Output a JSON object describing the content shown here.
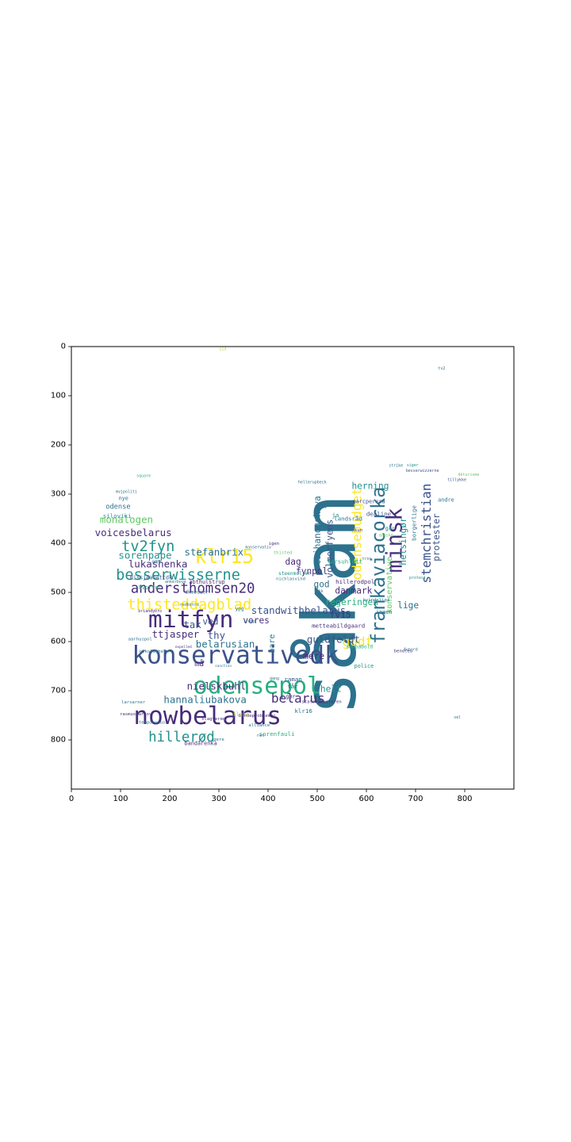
{
  "chart_data": {
    "type": "wordcloud",
    "title": "",
    "xlabel": "",
    "ylabel": "",
    "xlim": [
      0,
      900
    ],
    "ylim": [
      900,
      0
    ],
    "x_ticks": [
      0,
      100,
      200,
      300,
      400,
      500,
      600,
      700,
      800
    ],
    "y_ticks": [
      0,
      100,
      200,
      300,
      400,
      500,
      600,
      700,
      800
    ],
    "grid": false,
    "colormap": "viridis",
    "colors": [
      "#440154",
      "#472d7b",
      "#3b528b",
      "#2c728e",
      "#21918c",
      "#28ae80",
      "#5ec962",
      "#addc30",
      "#fde725"
    ],
    "words": [
      {
        "text": "såkan",
        "x": 525,
        "y": 525,
        "size": 150,
        "rot": -90,
        "c": 3
      },
      {
        "text": "konservativedk",
        "x": 334,
        "y": 628,
        "size": 50,
        "rot": 0,
        "c": 2
      },
      {
        "text": "nowbelarus",
        "x": 277,
        "y": 752,
        "size": 50,
        "rot": 0,
        "c": 1
      },
      {
        "text": "odensepol",
        "x": 378,
        "y": 690,
        "size": 48,
        "rot": 0,
        "c": 5
      },
      {
        "text": "mitfyn",
        "x": 243,
        "y": 556,
        "size": 48,
        "rot": 0,
        "c": 1
      },
      {
        "text": "minsk",
        "x": 658,
        "y": 394,
        "size": 44,
        "rot": -90,
        "c": 1
      },
      {
        "text": "frankaviacorka",
        "x": 624,
        "y": 445,
        "size": 38,
        "rot": -90,
        "c": 3
      },
      {
        "text": "klr15",
        "x": 311,
        "y": 427,
        "size": 40,
        "rot": 0,
        "c": 8
      },
      {
        "text": "besserwisserne",
        "x": 217,
        "y": 465,
        "size": 30,
        "rot": 0,
        "c": 4
      },
      {
        "text": "thisteddagblad",
        "x": 240,
        "y": 526,
        "size": 30,
        "rot": 0,
        "c": 8
      },
      {
        "text": "andersthomsen20",
        "x": 247,
        "y": 493,
        "size": 28,
        "rot": 0,
        "c": 1
      },
      {
        "text": "tv2fyn",
        "x": 156,
        "y": 407,
        "size": 30,
        "rot": 0,
        "c": 4
      },
      {
        "text": "hillerød",
        "x": 224,
        "y": 795,
        "size": 28,
        "rot": 0,
        "c": 4
      },
      {
        "text": "belarus",
        "x": 461,
        "y": 715,
        "size": 26,
        "rot": 0,
        "c": 1
      },
      {
        "text": "odensebudget",
        "x": 581,
        "y": 381,
        "size": 26,
        "rot": -90,
        "c": 8
      },
      {
        "text": "godt",
        "x": 582,
        "y": 600,
        "size": 26,
        "rot": 0,
        "c": 8
      },
      {
        "text": "stemchristian",
        "x": 722,
        "y": 380,
        "size": 26,
        "rot": -90,
        "c": 2
      },
      {
        "text": "lukashenka",
        "x": 176,
        "y": 442,
        "size": 20,
        "rot": 0,
        "c": 1
      },
      {
        "text": "stefanbrix",
        "x": 290,
        "y": 418,
        "size": 20,
        "rot": 0,
        "c": 3
      },
      {
        "text": "monalogen",
        "x": 112,
        "y": 352,
        "size": 20,
        "rot": 0,
        "c": 6
      },
      {
        "text": "sorenpape",
        "x": 150,
        "y": 424,
        "size": 20,
        "rot": 0,
        "c": 4
      },
      {
        "text": "voicesbelarus",
        "x": 126,
        "y": 378,
        "size": 20,
        "rot": 0,
        "c": 1
      },
      {
        "text": "hannaliubakova",
        "x": 272,
        "y": 718,
        "size": 20,
        "rot": 0,
        "c": 3
      },
      {
        "text": "nielskbuhl",
        "x": 295,
        "y": 690,
        "size": 20,
        "rot": 0,
        "c": 1
      },
      {
        "text": "standwithbelarus",
        "x": 462,
        "y": 536,
        "size": 20,
        "rot": 0,
        "c": 2
      },
      {
        "text": "guldfeldt",
        "x": 533,
        "y": 595,
        "size": 20,
        "rot": 0,
        "c": 2
      },
      {
        "text": "belarusian",
        "x": 313,
        "y": 605,
        "size": 20,
        "rot": 0,
        "c": 3
      },
      {
        "text": "ttjasper",
        "x": 212,
        "y": 585,
        "size": 20,
        "rot": 0,
        "c": 1
      },
      {
        "text": "tsihanouskaya",
        "x": 501,
        "y": 374,
        "size": 18,
        "rot": -90,
        "c": 3
      },
      {
        "text": "volmerfyens",
        "x": 526,
        "y": 411,
        "size": 18,
        "rot": -90,
        "c": 2
      },
      {
        "text": "fynpol",
        "x": 489,
        "y": 457,
        "size": 18,
        "rot": 0,
        "c": 1
      },
      {
        "text": "danmark",
        "x": 574,
        "y": 497,
        "size": 18,
        "rot": 0,
        "c": 1
      },
      {
        "text": "regeringen",
        "x": 570,
        "y": 520,
        "size": 18,
        "rot": 0,
        "c": 5
      },
      {
        "text": "herning",
        "x": 608,
        "y": 284,
        "size": 18,
        "rot": 0,
        "c": 4
      },
      {
        "text": "helsingør",
        "x": 675,
        "y": 396,
        "size": 18,
        "rot": -90,
        "c": 4
      },
      {
        "text": "konservative",
        "x": 648,
        "y": 485,
        "size": 16,
        "rot": -90,
        "c": 6
      },
      {
        "text": "protester",
        "x": 743,
        "y": 388,
        "size": 18,
        "rot": -90,
        "c": 2
      },
      {
        "text": "lige",
        "x": 685,
        "y": 527,
        "size": 18,
        "rot": 0,
        "c": 3
      },
      {
        "text": "tak",
        "x": 246,
        "y": 565,
        "size": 20,
        "rot": 0,
        "c": 2
      },
      {
        "text": "thy",
        "x": 295,
        "y": 587,
        "size": 20,
        "rot": 0,
        "c": 2
      },
      {
        "text": "vores",
        "x": 376,
        "y": 557,
        "size": 18,
        "rot": 0,
        "c": 1
      },
      {
        "text": "ved",
        "x": 283,
        "y": 560,
        "size": 18,
        "rot": 0,
        "c": 2
      },
      {
        "text": "god",
        "x": 509,
        "y": 484,
        "size": 18,
        "rot": 0,
        "c": 3
      },
      {
        "text": "fv15",
        "x": 547,
        "y": 546,
        "size": 18,
        "rot": 0,
        "c": 1
      },
      {
        "text": "mere",
        "x": 493,
        "y": 630,
        "size": 18,
        "rot": 0,
        "c": 1
      },
      {
        "text": "helt",
        "x": 528,
        "y": 697,
        "size": 18,
        "rot": 0,
        "c": 4
      },
      {
        "text": "dag",
        "x": 451,
        "y": 438,
        "size": 18,
        "rot": 0,
        "c": 1
      },
      {
        "text": "bare",
        "x": 409,
        "y": 604,
        "size": 16,
        "rot": -90,
        "c": 3
      },
      {
        "text": "må",
        "x": 260,
        "y": 646,
        "size": 16,
        "rot": 0,
        "c": 1
      },
      {
        "text": "odense",
        "x": 95,
        "y": 327,
        "size": 14,
        "rot": 0,
        "c": 3
      },
      {
        "text": "siloviki",
        "x": 93,
        "y": 344,
        "size": 12,
        "rot": 0,
        "c": 4
      },
      {
        "text": "steenmoller",
        "x": 454,
        "y": 462,
        "size": 10,
        "rot": 0,
        "c": 4
      },
      {
        "text": "larsuhlott",
        "x": 556,
        "y": 437,
        "size": 12,
        "rot": 0,
        "c": 5
      },
      {
        "text": "landsråd",
        "x": 563,
        "y": 350,
        "size": 12,
        "rot": 0,
        "c": 3
      },
      {
        "text": "dealine",
        "x": 625,
        "y": 340,
        "size": 12,
        "rot": 0,
        "c": 2
      },
      {
        "text": "borgerlige",
        "x": 697,
        "y": 359,
        "size": 12,
        "rot": -90,
        "c": 3
      },
      {
        "text": "marcperera",
        "x": 605,
        "y": 315,
        "size": 11,
        "rot": 0,
        "c": 2
      },
      {
        "text": "hillerodpol",
        "x": 577,
        "y": 478,
        "size": 12,
        "rot": 0,
        "c": 1
      },
      {
        "text": "metteabildgaard",
        "x": 543,
        "y": 568,
        "size": 12,
        "rot": 0,
        "c": 1
      },
      {
        "text": "sambabold",
        "x": 586,
        "y": 611,
        "size": 10,
        "rot": 0,
        "c": 5
      },
      {
        "text": "police",
        "x": 595,
        "y": 650,
        "size": 11,
        "rot": 0,
        "c": 4
      },
      {
        "text": "raman",
        "x": 451,
        "y": 677,
        "size": 12,
        "rot": 0,
        "c": 2
      },
      {
        "text": "får",
        "x": 450,
        "y": 691,
        "size": 12,
        "rot": 0,
        "c": 2
      },
      {
        "text": "klr16",
        "x": 472,
        "y": 741,
        "size": 12,
        "rot": 0,
        "c": 3
      },
      {
        "text": "sorenfauli",
        "x": 418,
        "y": 788,
        "size": 12,
        "rot": 0,
        "c": 5
      },
      {
        "text": "bandarenka",
        "x": 263,
        "y": 807,
        "size": 11,
        "rot": 0,
        "c": 1
      },
      {
        "text": "abthulstrup",
        "x": 276,
        "y": 479,
        "size": 11,
        "rot": 0,
        "c": 1
      },
      {
        "text": "dkmedier",
        "x": 255,
        "y": 500,
        "size": 10,
        "rot": 0,
        "c": 3
      },
      {
        "text": "missjeanettdk",
        "x": 162,
        "y": 470,
        "size": 11,
        "rot": 0,
        "c": 2
      },
      {
        "text": "amy",
        "x": 173,
        "y": 438,
        "size": 11,
        "rot": 0,
        "c": 3
      },
      {
        "text": "hvorfor",
        "x": 160,
        "y": 490,
        "size": 11,
        "rot": 0,
        "c": 5
      },
      {
        "text": "ingen",
        "x": 636,
        "y": 540,
        "size": 11,
        "rot": 0,
        "c": 3
      },
      {
        "text": "andre",
        "x": 762,
        "y": 312,
        "size": 11,
        "rot": 0,
        "c": 3
      },
      {
        "text": "nye",
        "x": 106,
        "y": 309,
        "size": 11,
        "rot": 0,
        "c": 3
      },
      {
        "text": "år",
        "x": 514,
        "y": 325,
        "size": 12,
        "rot": 0,
        "c": 3
      },
      {
        "text": "ja",
        "x": 537,
        "y": 343,
        "size": 12,
        "rot": 0,
        "c": 4
      },
      {
        "text": "går",
        "x": 648,
        "y": 370,
        "size": 11,
        "rot": 0,
        "c": 4
      },
      {
        "text": "ypg",
        "x": 342,
        "y": 534,
        "size": 10,
        "rot": 0,
        "c": 3
      },
      {
        "text": "gør",
        "x": 446,
        "y": 712,
        "size": 11,
        "rot": 0,
        "c": 1
      },
      {
        "text": "nichlasvind",
        "x": 446,
        "y": 473,
        "size": 9,
        "rot": 0,
        "c": 3
      },
      {
        "text": "igen",
        "x": 412,
        "y": 402,
        "size": 9,
        "rot": 0,
        "c": 1
      },
      {
        "text": "thisted",
        "x": 430,
        "y": 420,
        "size": 9,
        "rot": 0,
        "c": 6
      },
      {
        "text": "alliance",
        "x": 382,
        "y": 771,
        "size": 9,
        "rot": 0,
        "c": 3
      },
      {
        "text": "ret",
        "x": 385,
        "y": 792,
        "size": 9,
        "rot": 0,
        "c": 3
      },
      {
        "text": "gere",
        "x": 300,
        "y": 800,
        "size": 9,
        "rot": 0,
        "c": 3
      },
      {
        "text": "bandeproblemer",
        "x": 378,
        "y": 752,
        "size": 9,
        "rot": 0,
        "c": 1
      },
      {
        "text": "slagteren",
        "x": 289,
        "y": 758,
        "size": 9,
        "rot": 0,
        "c": 1
      },
      {
        "text": "flere",
        "x": 345,
        "y": 748,
        "size": 11,
        "rot": 0,
        "c": 7
      },
      {
        "text": "statsministeren",
        "x": 509,
        "y": 723,
        "size": 9,
        "rot": 0,
        "c": 1
      },
      {
        "text": "tempobonus",
        "x": 164,
        "y": 765,
        "size": 9,
        "rot": 0,
        "c": 3
      },
      {
        "text": "rasmusjarlov",
        "x": 131,
        "y": 748,
        "size": 9,
        "rot": 0,
        "c": 1
      },
      {
        "text": "larsarner",
        "x": 126,
        "y": 724,
        "size": 9,
        "rot": 0,
        "c": 3
      },
      {
        "text": "aarhuspol",
        "x": 140,
        "y": 596,
        "size": 9,
        "rot": 0,
        "c": 3
      },
      {
        "text": "nikolajhelm",
        "x": 168,
        "y": 621,
        "size": 9,
        "rot": 0,
        "c": 3
      },
      {
        "text": "briandybro",
        "x": 160,
        "y": 539,
        "size": 8,
        "rot": 0,
        "c": 1
      },
      {
        "text": "ankerboye",
        "x": 212,
        "y": 479,
        "size": 8,
        "rot": 0,
        "c": 3
      },
      {
        "text": "kvindeliga",
        "x": 620,
        "y": 516,
        "size": 9,
        "rot": 0,
        "c": 3
      },
      {
        "text": "bendteu",
        "x": 675,
        "y": 620,
        "size": 9,
        "rot": 0,
        "c": 1
      },
      {
        "text": "besserwizzerne",
        "x": 714,
        "y": 253,
        "size": 8,
        "rot": 0,
        "c": 2
      },
      {
        "text": "tillykke",
        "x": 784,
        "y": 272,
        "size": 8,
        "rot": 0,
        "c": 2
      },
      {
        "text": "dkturisme",
        "x": 808,
        "y": 261,
        "size": 8,
        "rot": 0,
        "c": 6
      },
      {
        "text": "siger",
        "x": 694,
        "y": 242,
        "size": 8,
        "rot": 0,
        "c": 4
      },
      {
        "text": "strike",
        "x": 660,
        "y": 243,
        "size": 8,
        "rot": 0,
        "c": 3
      },
      {
        "text": "tv2",
        "x": 753,
        "y": 45,
        "size": 8,
        "rot": 0,
        "c": 3
      },
      {
        "text": "sid",
        "x": 308,
        "y": 6,
        "size": 8,
        "rot": 0,
        "c": 7
      },
      {
        "text": "vel",
        "x": 785,
        "y": 755,
        "size": 8,
        "rot": 0,
        "c": 3
      },
      {
        "text": "square",
        "x": 147,
        "y": 264,
        "size": 8,
        "rot": 0,
        "c": 5
      },
      {
        "text": "mvjpoliti",
        "x": 112,
        "y": 296,
        "size": 8,
        "rot": 0,
        "c": 3
      },
      {
        "text": "trump",
        "x": 362,
        "y": 560,
        "size": 8,
        "rot": 0,
        "c": 3
      },
      {
        "text": "redbstrd",
        "x": 240,
        "y": 526,
        "size": 8,
        "rot": 0,
        "c": 3
      },
      {
        "text": "kun",
        "x": 584,
        "y": 374,
        "size": 9,
        "rot": 0,
        "c": 1
      },
      {
        "text": "protest",
        "x": 704,
        "y": 471,
        "size": 8,
        "rot": 0,
        "c": 4
      },
      {
        "text": "tror",
        "x": 601,
        "y": 432,
        "size": 8,
        "rot": 0,
        "c": 3
      },
      {
        "text": "fvnord",
        "x": 690,
        "y": 617,
        "size": 8,
        "rot": 0,
        "c": 3
      },
      {
        "text": "sanction",
        "x": 309,
        "y": 651,
        "size": 7,
        "rot": 0,
        "c": 3
      },
      {
        "text": "pkk",
        "x": 505,
        "y": 498,
        "size": 8,
        "rot": 0,
        "c": 3
      },
      {
        "text": "gang",
        "x": 413,
        "y": 676,
        "size": 8,
        "rot": 0,
        "c": 3
      },
      {
        "text": "expelled",
        "x": 228,
        "y": 612,
        "size": 7,
        "rot": 0,
        "c": 1
      },
      {
        "text": "konservativ",
        "x": 380,
        "y": 409,
        "size": 8,
        "rot": 0,
        "c": 3
      },
      {
        "text": "danske",
        "x": 640,
        "y": 385,
        "size": 8,
        "rot": 0,
        "c": 6
      },
      {
        "text": "hellerupbeck",
        "x": 490,
        "y": 277,
        "size": 8,
        "rot": 0,
        "c": 3
      }
    ]
  }
}
